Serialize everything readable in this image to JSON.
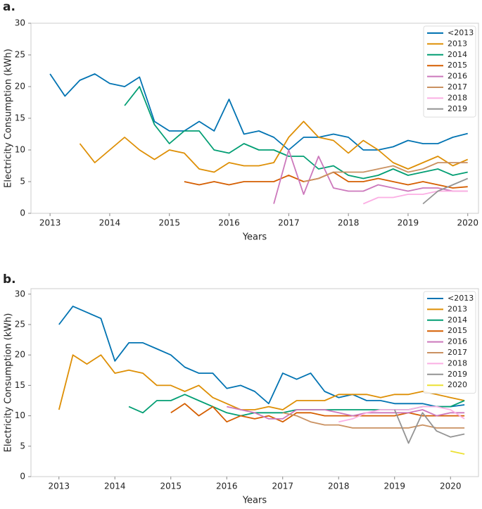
{
  "chart_data": [
    {
      "type": "line",
      "panel_label": "a.",
      "x_label": "Years",
      "y_label": "Electricity Consumption (kWh)",
      "x": [
        2013,
        2013.25,
        2013.5,
        2013.75,
        2014,
        2014.25,
        2014.5,
        2014.75,
        2015,
        2015.25,
        2015.5,
        2015.75,
        2016,
        2016.25,
        2016.5,
        2016.75,
        2017,
        2017.25,
        2017.5,
        2017.75,
        2018,
        2018.25,
        2018.5,
        2018.75,
        2019,
        2019.25,
        2019.5,
        2019.75,
        2020
      ],
      "xlim": [
        2012.68,
        2020.18
      ],
      "xticks": [
        2013,
        2014,
        2015,
        2016,
        2017,
        2018,
        2019,
        2020
      ],
      "ylim": [
        0,
        30
      ],
      "yticks": [
        0,
        5,
        10,
        15,
        20,
        25,
        30
      ],
      "grid": false,
      "legend": "upper right",
      "series": [
        {
          "name": "<2013",
          "color": "#0173b2",
          "values": [
            22,
            18.5,
            21,
            22,
            20.5,
            20,
            21.5,
            14.5,
            13,
            13,
            14.5,
            13,
            18,
            12.5,
            13,
            12,
            10,
            12,
            12,
            12.5,
            12,
            10,
            10,
            10.5,
            11.5,
            11,
            11,
            12,
            12.6
          ]
        },
        {
          "name": "2013",
          "color": "#de8f05",
          "values": [
            null,
            null,
            11,
            8,
            10,
            12,
            10,
            8.5,
            10,
            9.5,
            7,
            6.5,
            8,
            7.5,
            7.5,
            8,
            12,
            14.5,
            12,
            11.5,
            9.5,
            11.5,
            10,
            8,
            7,
            8,
            9,
            7.5,
            8.5
          ]
        },
        {
          "name": "2014",
          "color": "#029e73",
          "values": [
            null,
            null,
            null,
            null,
            null,
            17,
            20,
            14,
            11,
            13,
            13,
            10,
            9.5,
            11,
            10,
            10,
            9,
            9,
            7,
            7.5,
            6,
            5.5,
            6,
            7,
            6,
            6.5,
            7,
            6,
            6.5
          ]
        },
        {
          "name": "2015",
          "color": "#d55e00",
          "values": [
            null,
            null,
            null,
            null,
            null,
            null,
            null,
            null,
            null,
            5,
            4.5,
            5,
            4.5,
            5,
            5,
            5,
            6,
            5,
            5.5,
            6.5,
            5,
            5,
            5.5,
            5,
            4.5,
            5,
            4.5,
            4,
            4.2
          ]
        },
        {
          "name": "2016",
          "color": "#cc78bc",
          "values": [
            null,
            null,
            null,
            null,
            null,
            null,
            null,
            null,
            null,
            null,
            null,
            null,
            null,
            null,
            null,
            1.5,
            10,
            3,
            9,
            4,
            3.5,
            3.5,
            4.5,
            4,
            3.5,
            4,
            4,
            3.5,
            3.5
          ]
        },
        {
          "name": "2017",
          "color": "#ca9161",
          "values": [
            null,
            null,
            null,
            null,
            null,
            null,
            null,
            null,
            null,
            null,
            null,
            null,
            null,
            null,
            null,
            null,
            null,
            5,
            5.5,
            6.5,
            6.5,
            6.5,
            7,
            7.5,
            6.5,
            7,
            8,
            8,
            8
          ]
        },
        {
          "name": "2018",
          "color": "#fbafe4",
          "values": [
            null,
            null,
            null,
            null,
            null,
            null,
            null,
            null,
            null,
            null,
            null,
            null,
            null,
            null,
            null,
            null,
            null,
            null,
            null,
            null,
            null,
            1.5,
            2.5,
            2.5,
            3,
            3,
            3.5,
            3.5,
            3.5
          ]
        },
        {
          "name": "2019",
          "color": "#949494",
          "values": [
            null,
            null,
            null,
            null,
            null,
            null,
            null,
            null,
            null,
            null,
            null,
            null,
            null,
            null,
            null,
            null,
            null,
            null,
            null,
            null,
            null,
            null,
            null,
            null,
            null,
            1.5,
            3.5,
            4.5,
            5.5
          ]
        }
      ]
    },
    {
      "type": "line",
      "panel_label": "b.",
      "x_label": "Years",
      "y_label": "Electricity Consumption (kWh)",
      "x": [
        2013,
        2013.25,
        2013.5,
        2013.75,
        2014,
        2014.25,
        2014.5,
        2014.75,
        2015,
        2015.25,
        2015.5,
        2015.75,
        2016,
        2016.25,
        2016.5,
        2016.75,
        2017,
        2017.25,
        2017.5,
        2017.75,
        2018,
        2018.25,
        2018.5,
        2018.75,
        2019,
        2019.25,
        2019.5,
        2019.75,
        2020,
        2020.25
      ],
      "xlim": [
        2012.5,
        2020.5
      ],
      "xticks": [
        2013,
        2014,
        2015,
        2016,
        2017,
        2018,
        2019,
        2020
      ],
      "ylim": [
        0,
        30.9
      ],
      "yticks": [
        0,
        5,
        10,
        15,
        20,
        25,
        30
      ],
      "grid": false,
      "legend": "upper right",
      "series": [
        {
          "name": "<2013",
          "color": "#0173b2",
          "values": [
            25,
            28,
            27,
            26,
            19,
            22,
            22,
            21,
            20,
            18,
            17,
            17,
            14.5,
            15,
            14,
            12,
            17,
            16,
            17,
            14,
            13,
            13.5,
            12.5,
            12.5,
            12,
            12,
            12,
            11.5,
            11.5,
            11.8
          ]
        },
        {
          "name": "2013",
          "color": "#de8f05",
          "values": [
            11,
            20,
            18.5,
            20,
            17,
            17.5,
            17,
            15,
            15,
            14,
            15,
            13,
            12,
            11,
            11,
            11.5,
            11,
            12.5,
            12.5,
            12.5,
            13.5,
            13.5,
            13.5,
            13,
            13.5,
            13.5,
            14,
            13.5,
            13,
            12.5
          ]
        },
        {
          "name": "2014",
          "color": "#029e73",
          "values": [
            null,
            null,
            null,
            null,
            null,
            11.5,
            10.5,
            12.5,
            12.5,
            13.5,
            12.5,
            11.5,
            10.5,
            10,
            10.5,
            10.5,
            10.5,
            11,
            11,
            11,
            11,
            11,
            11,
            11,
            11,
            11,
            11.5,
            11.5,
            11.5,
            12.5
          ]
        },
        {
          "name": "2015",
          "color": "#d55e00",
          "values": [
            null,
            null,
            null,
            null,
            null,
            null,
            null,
            null,
            10.5,
            12,
            10,
            11.5,
            9,
            10,
            9.5,
            10,
            9,
            10.5,
            10.5,
            10,
            10,
            10,
            10,
            10,
            10,
            10.5,
            10,
            10,
            10,
            10
          ]
        },
        {
          "name": "2016",
          "color": "#cc78bc",
          "values": [
            null,
            null,
            null,
            null,
            null,
            null,
            null,
            null,
            null,
            null,
            null,
            null,
            11.5,
            11,
            10.5,
            9.5,
            9.5,
            11,
            11,
            11,
            10.5,
            10,
            10.5,
            10.5,
            10.5,
            10.5,
            11,
            10,
            10.5,
            10.5
          ]
        },
        {
          "name": "2017",
          "color": "#ca9161",
          "values": [
            null,
            null,
            null,
            null,
            null,
            null,
            null,
            null,
            null,
            null,
            null,
            null,
            null,
            null,
            null,
            null,
            10.5,
            10,
            9,
            8.5,
            8.5,
            8,
            8,
            8,
            8,
            8,
            8.5,
            8,
            8,
            8
          ]
        },
        {
          "name": "2018",
          "color": "#fbafe4",
          "values": [
            null,
            null,
            null,
            null,
            null,
            null,
            null,
            null,
            null,
            null,
            null,
            null,
            null,
            null,
            null,
            null,
            null,
            null,
            null,
            null,
            9,
            9.5,
            10.5,
            11,
            11,
            11,
            11.5,
            11.5,
            11,
            9.5
          ]
        },
        {
          "name": "2019",
          "color": "#949494",
          "values": [
            null,
            null,
            null,
            null,
            null,
            null,
            null,
            null,
            null,
            null,
            null,
            null,
            null,
            null,
            null,
            null,
            null,
            null,
            null,
            null,
            null,
            null,
            null,
            null,
            11,
            5.5,
            10.5,
            7.5,
            6.5,
            7
          ]
        },
        {
          "name": "2020",
          "color": "#ece133",
          "values": [
            null,
            null,
            null,
            null,
            null,
            null,
            null,
            null,
            null,
            null,
            null,
            null,
            null,
            null,
            null,
            null,
            null,
            null,
            null,
            null,
            null,
            null,
            null,
            null,
            null,
            null,
            null,
            null,
            4.2,
            3.7
          ]
        }
      ]
    }
  ]
}
